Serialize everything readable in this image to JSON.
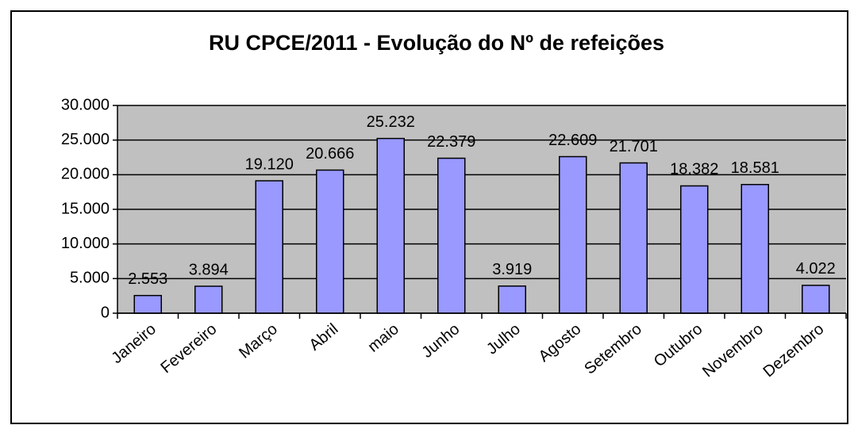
{
  "chart_data": {
    "type": "bar",
    "title": "RU CPCE/2011 - Evolução do Nº de refeições",
    "categories": [
      "Janeiro",
      "Fevereiro",
      "Março",
      "Abril",
      "maio",
      "Junho",
      "Julho",
      "Agosto",
      "Setembro",
      "Outubro",
      "Novembro",
      "Dezembro"
    ],
    "values": [
      2553,
      3894,
      19120,
      20666,
      25232,
      22379,
      3919,
      22609,
      21701,
      18382,
      18581,
      4022
    ],
    "value_labels": [
      "2.553",
      "3.894",
      "19.120",
      "20.666",
      "25.232",
      "22.379",
      "3.919",
      "22.609",
      "21.701",
      "18.382",
      "18.581",
      "4.022"
    ],
    "color": "#9999ff",
    "ylim": [
      0,
      30000
    ],
    "yticks": [
      0,
      {
        "value": 5000,
        "label": "5.000"
      },
      {
        "value": 10000,
        "label": "10.000"
      },
      {
        "value": 15000,
        "label": "15.000"
      },
      {
        "value": 20000,
        "label": "20.000"
      },
      {
        "value": 25000,
        "label": "25.000"
      },
      {
        "value": 30000,
        "label": "30.000"
      }
    ],
    "grid": true
  }
}
